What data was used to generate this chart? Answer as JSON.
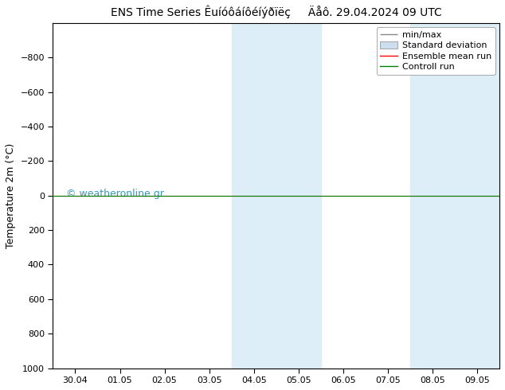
{
  "title_part1": "ENS Time Series Êuíóôáíôéíýðïëç",
  "title_part2": "Äåô. 29.04.2024 09 UTC",
  "ylabel": "Temperature 2m (°C)",
  "ylim_bottom": 1000,
  "ylim_top": -1000,
  "yticks": [
    -800,
    -600,
    -400,
    -200,
    0,
    200,
    400,
    600,
    800,
    1000
  ],
  "xlim_start": -0.5,
  "xlim_end": 9.5,
  "xtick_positions": [
    0,
    1,
    2,
    3,
    4,
    5,
    6,
    7,
    8,
    9
  ],
  "xtick_labels": [
    "30.04",
    "01.05",
    "02.05",
    "03.05",
    "04.05",
    "05.05",
    "06.05",
    "07.05",
    "08.05",
    "09.05"
  ],
  "shaded_regions": [
    {
      "x_start": 3.5,
      "x_end": 4.5,
      "color": "#ddeef8"
    },
    {
      "x_start": 4.5,
      "x_end": 5.5,
      "color": "#ddeef8"
    },
    {
      "x_start": 7.5,
      "x_end": 8.5,
      "color": "#ddeef8"
    },
    {
      "x_start": 8.5,
      "x_end": 9.5,
      "color": "#ddeef8"
    }
  ],
  "control_run_y": 0,
  "ensemble_mean_y": 0,
  "control_run_color": "#008000",
  "ensemble_mean_color": "#ff0000",
  "watermark": "© weatheronline.gr",
  "watermark_color": "#3399bb",
  "watermark_fontsize": 9,
  "background_color": "#ffffff",
  "plot_bg_color": "#ffffff",
  "tick_label_fontsize": 8,
  "title_fontsize": 10,
  "legend_fontsize": 8
}
